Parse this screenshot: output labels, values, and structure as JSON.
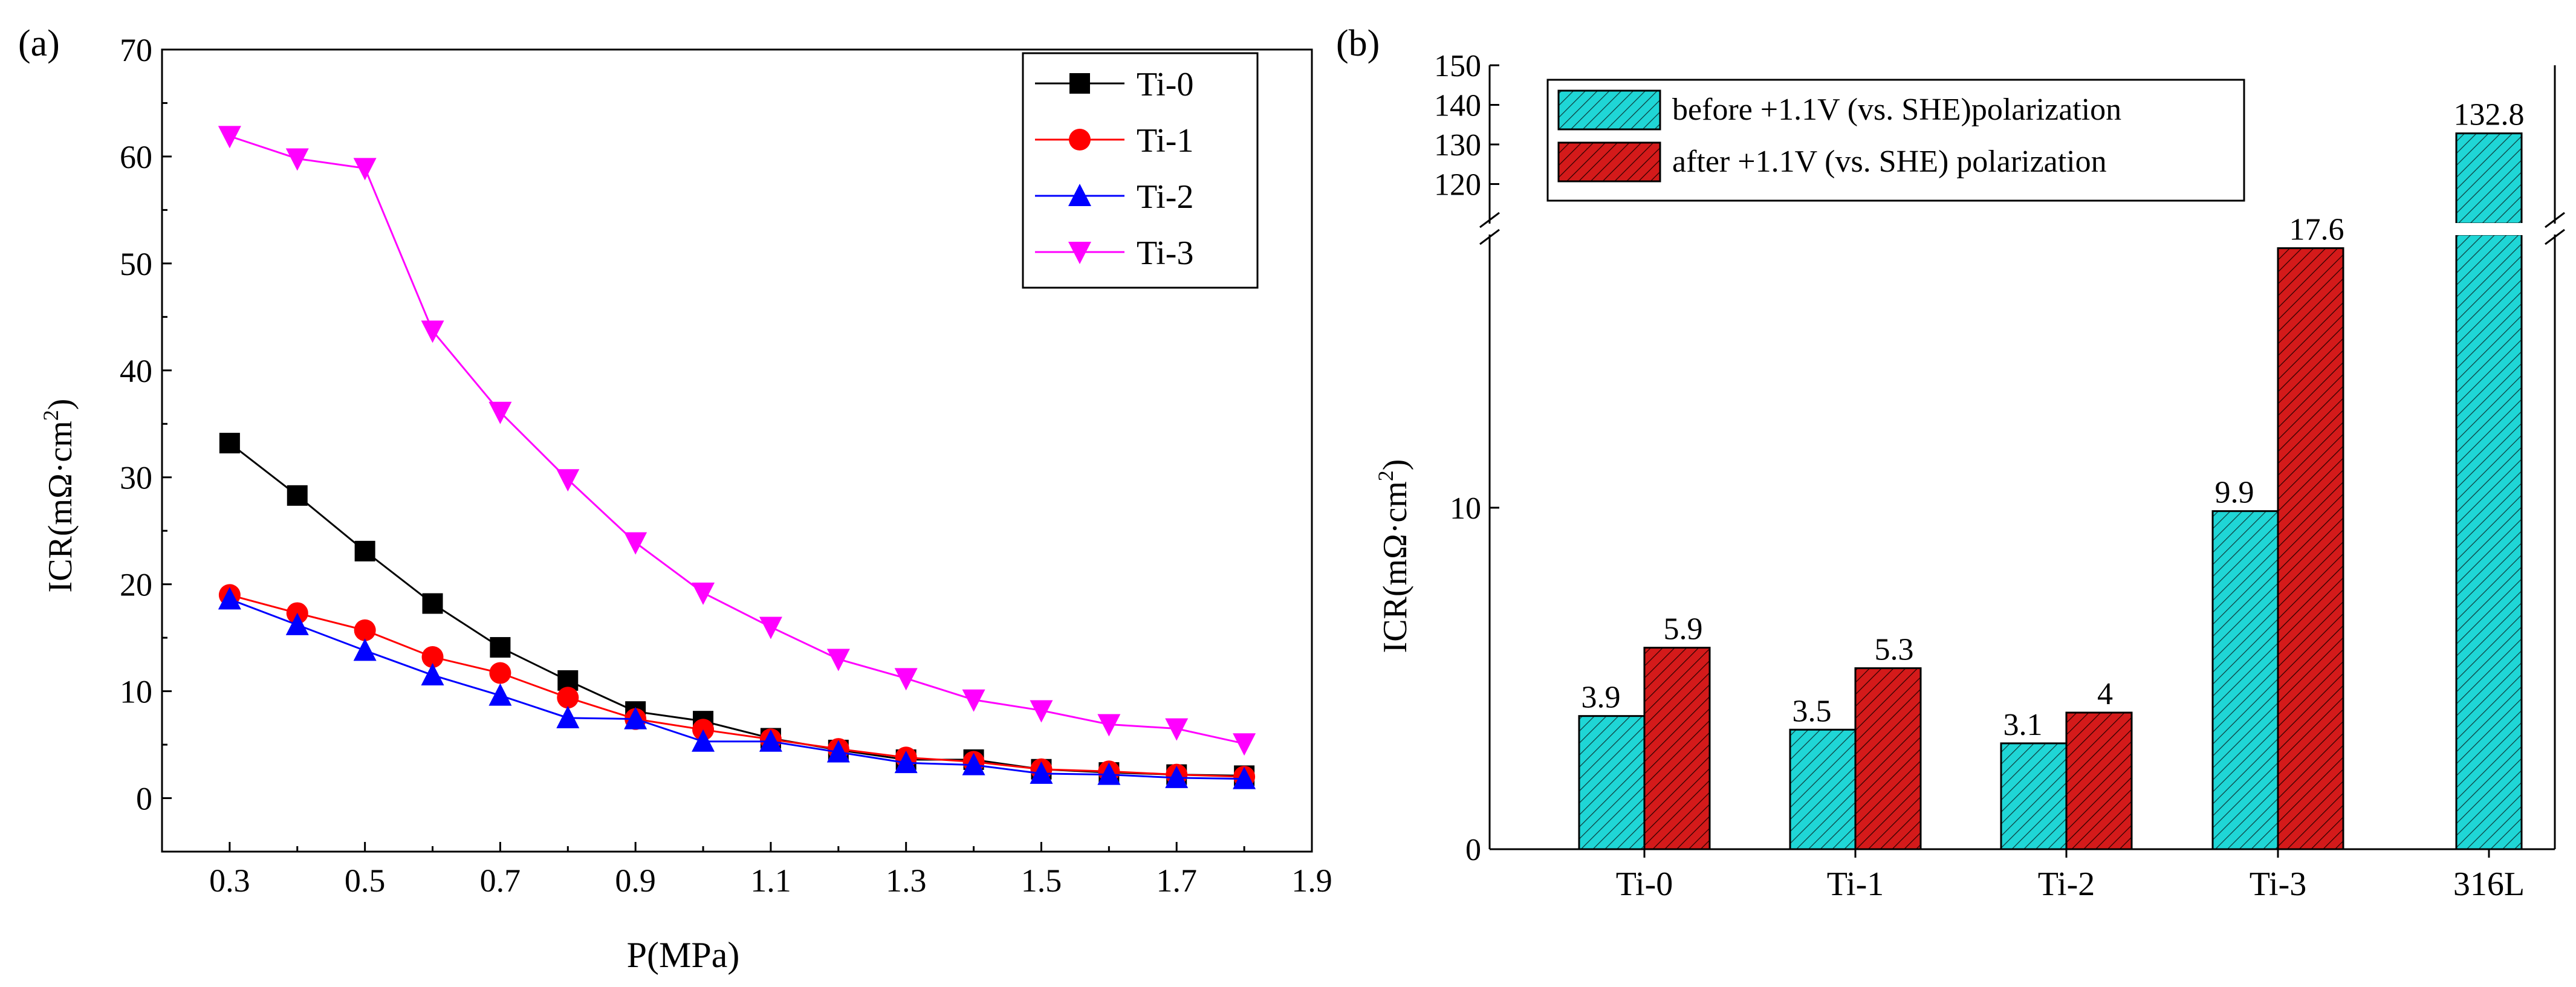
{
  "panels": {
    "a": {
      "label": "(a)"
    },
    "b": {
      "label": "(b)"
    }
  },
  "colors": {
    "Ti-0": "#000000",
    "Ti-1": "#ff0000",
    "Ti-2": "#0000ff",
    "Ti-3": "#ff00ff",
    "bar_before": "#1fd6d6",
    "bar_after": "#d41a1a"
  },
  "chart_data": [
    {
      "panel": "(a)",
      "type": "line",
      "title": "",
      "xlabel": "P(MPa)",
      "ylabel": "ICR(mΩ·cm²)",
      "ylabel_parts": [
        "ICR(mΩ·cm",
        "2",
        ")"
      ],
      "xlim": [
        0.2,
        1.9
      ],
      "ylim": [
        -5,
        70
      ],
      "xticks": [
        0.3,
        0.5,
        0.7,
        0.9,
        1.1,
        1.3,
        1.5,
        1.7,
        1.9
      ],
      "xtick_labels": [
        "0.3",
        "0.5",
        "0.7",
        "0.9",
        "1.1",
        "1.3",
        "1.5",
        "1.7",
        "1.9"
      ],
      "yticks": [
        0,
        10,
        20,
        30,
        40,
        50,
        60,
        70
      ],
      "ytick_labels": [
        "0",
        "10",
        "20",
        "30",
        "40",
        "50",
        "60",
        "70"
      ],
      "legend_position": "top-right",
      "x": [
        0.3,
        0.4,
        0.5,
        0.6,
        0.7,
        0.8,
        0.9,
        1.0,
        1.1,
        1.2,
        1.3,
        1.4,
        1.5,
        1.6,
        1.7,
        1.8
      ],
      "series": [
        {
          "name": "Ti-0",
          "marker": "square",
          "values": [
            33.2,
            28.3,
            23.1,
            18.2,
            14.1,
            11.0,
            8.1,
            7.2,
            5.6,
            4.5,
            3.6,
            3.6,
            2.7,
            2.4,
            2.2,
            2.1
          ]
        },
        {
          "name": "Ti-1",
          "marker": "circle",
          "values": [
            19.0,
            17.3,
            15.7,
            13.2,
            11.7,
            9.4,
            7.4,
            6.4,
            5.5,
            4.6,
            3.8,
            3.4,
            2.7,
            2.5,
            2.2,
            2.0
          ]
        },
        {
          "name": "Ti-2",
          "marker": "triangle-up",
          "values": [
            18.6,
            16.2,
            13.8,
            11.5,
            9.6,
            7.5,
            7.4,
            5.3,
            5.3,
            4.3,
            3.3,
            3.1,
            2.3,
            2.2,
            1.9,
            1.8
          ]
        },
        {
          "name": "Ti-3",
          "marker": "triangle-down",
          "values": [
            61.9,
            59.8,
            58.9,
            43.7,
            36.1,
            29.8,
            23.9,
            19.2,
            16.0,
            13.0,
            11.2,
            9.2,
            8.2,
            6.9,
            6.5,
            5.1
          ]
        }
      ]
    },
    {
      "panel": "(b)",
      "type": "bar",
      "title": "",
      "xlabel": "",
      "ylabel": "ICR(mΩ·cm²)",
      "ylabel_parts": [
        "ICR(mΩ·cm",
        "2",
        ")"
      ],
      "categories": [
        "Ti-0",
        "Ti-1",
        "Ti-2",
        "Ti-3",
        "316L"
      ],
      "axis_break": {
        "lower_ylim": [
          0,
          18
        ],
        "upper_ylim": [
          110,
          150
        ]
      },
      "lower_yticks": [
        0,
        10
      ],
      "lower_ytick_labels": [
        "0",
        "10"
      ],
      "upper_yticks": [
        120,
        130,
        140,
        150
      ],
      "upper_ytick_labels": [
        "120",
        "130",
        "140",
        "150"
      ],
      "legend_position": "top-left",
      "series": [
        {
          "name": "before +1.1V (vs. SHE)polarization",
          "values": [
            3.9,
            3.5,
            3.1,
            9.9,
            132.8
          ],
          "value_labels": [
            "3.9",
            "3.5",
            "3.1",
            "9.9",
            "132.8"
          ]
        },
        {
          "name": "after +1.1V (vs. SHE) polarization",
          "values": [
            5.9,
            5.3,
            4.0,
            17.6,
            null
          ],
          "value_labels": [
            "5.9",
            "5.3",
            "4",
            "17.6",
            ""
          ]
        }
      ]
    }
  ]
}
